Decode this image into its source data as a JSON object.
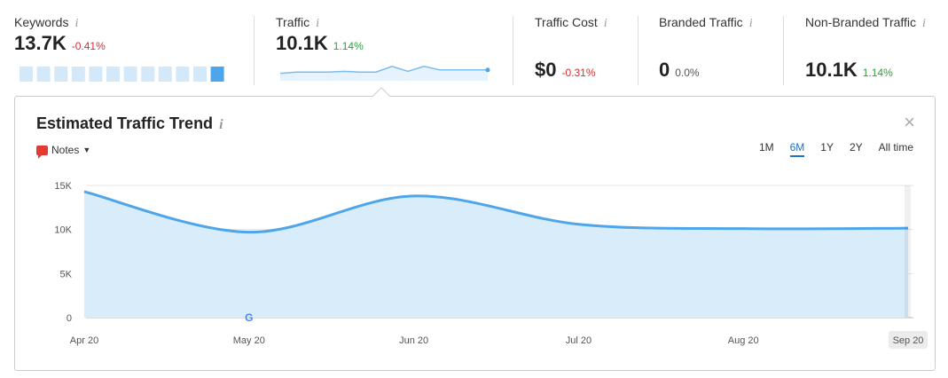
{
  "metrics": {
    "keywords": {
      "label": "Keywords",
      "value": "13.7K",
      "delta": "-0.41%"
    },
    "traffic": {
      "label": "Traffic",
      "value": "10.1K",
      "delta": "1.14%"
    },
    "traffic_cost": {
      "label": "Traffic Cost",
      "value": "$0",
      "delta": "-0.31%"
    },
    "branded": {
      "label": "Branded Traffic",
      "value": "0",
      "delta": "0.0%"
    },
    "non_branded": {
      "label": "Non-Branded Traffic",
      "value": "10.1K",
      "delta": "1.14%"
    }
  },
  "info_glyph": "i",
  "colors": {
    "accent": "#1a73c9",
    "line": "#4ea5ea",
    "area": "#d9ecfa",
    "negative": "#d32f2f",
    "positive": "#2e9e3e"
  },
  "panel": {
    "title": "Estimated Traffic Trend",
    "notes_label": "Notes",
    "close_glyph": "×",
    "ranges": [
      "1M",
      "6M",
      "1Y",
      "2Y",
      "All time"
    ],
    "active_range": "6M"
  },
  "sparklines": {
    "keywords_bars": [
      0.85,
      0.85,
      0.85,
      0.85,
      0.85,
      0.85,
      0.85,
      0.85,
      0.85,
      0.85,
      0.85,
      0.85
    ],
    "traffic_line": [
      12.4,
      12.6,
      12.6,
      12.6,
      12.7,
      12.6,
      12.6,
      13.4,
      12.7,
      13.4,
      12.9,
      12.9,
      12.9,
      12.9
    ]
  },
  "chart_data": {
    "type": "area",
    "title": "Estimated Traffic Trend",
    "x": [
      "Apr 20",
      "May 20",
      "Jun 20",
      "Jul 20",
      "Aug 20",
      "Sep 20"
    ],
    "series": [
      {
        "values": [
          14300,
          9700,
          13800,
          10600,
          10100,
          10150
        ]
      }
    ],
    "yticks": [
      "0",
      "5K",
      "10K",
      "15K"
    ],
    "ylim": [
      0,
      15000
    ],
    "grid": true,
    "markers": [
      {
        "x": "May 20",
        "icon": "google-icon",
        "glyph": "G"
      }
    ],
    "highlighted_x": "Sep 20"
  }
}
